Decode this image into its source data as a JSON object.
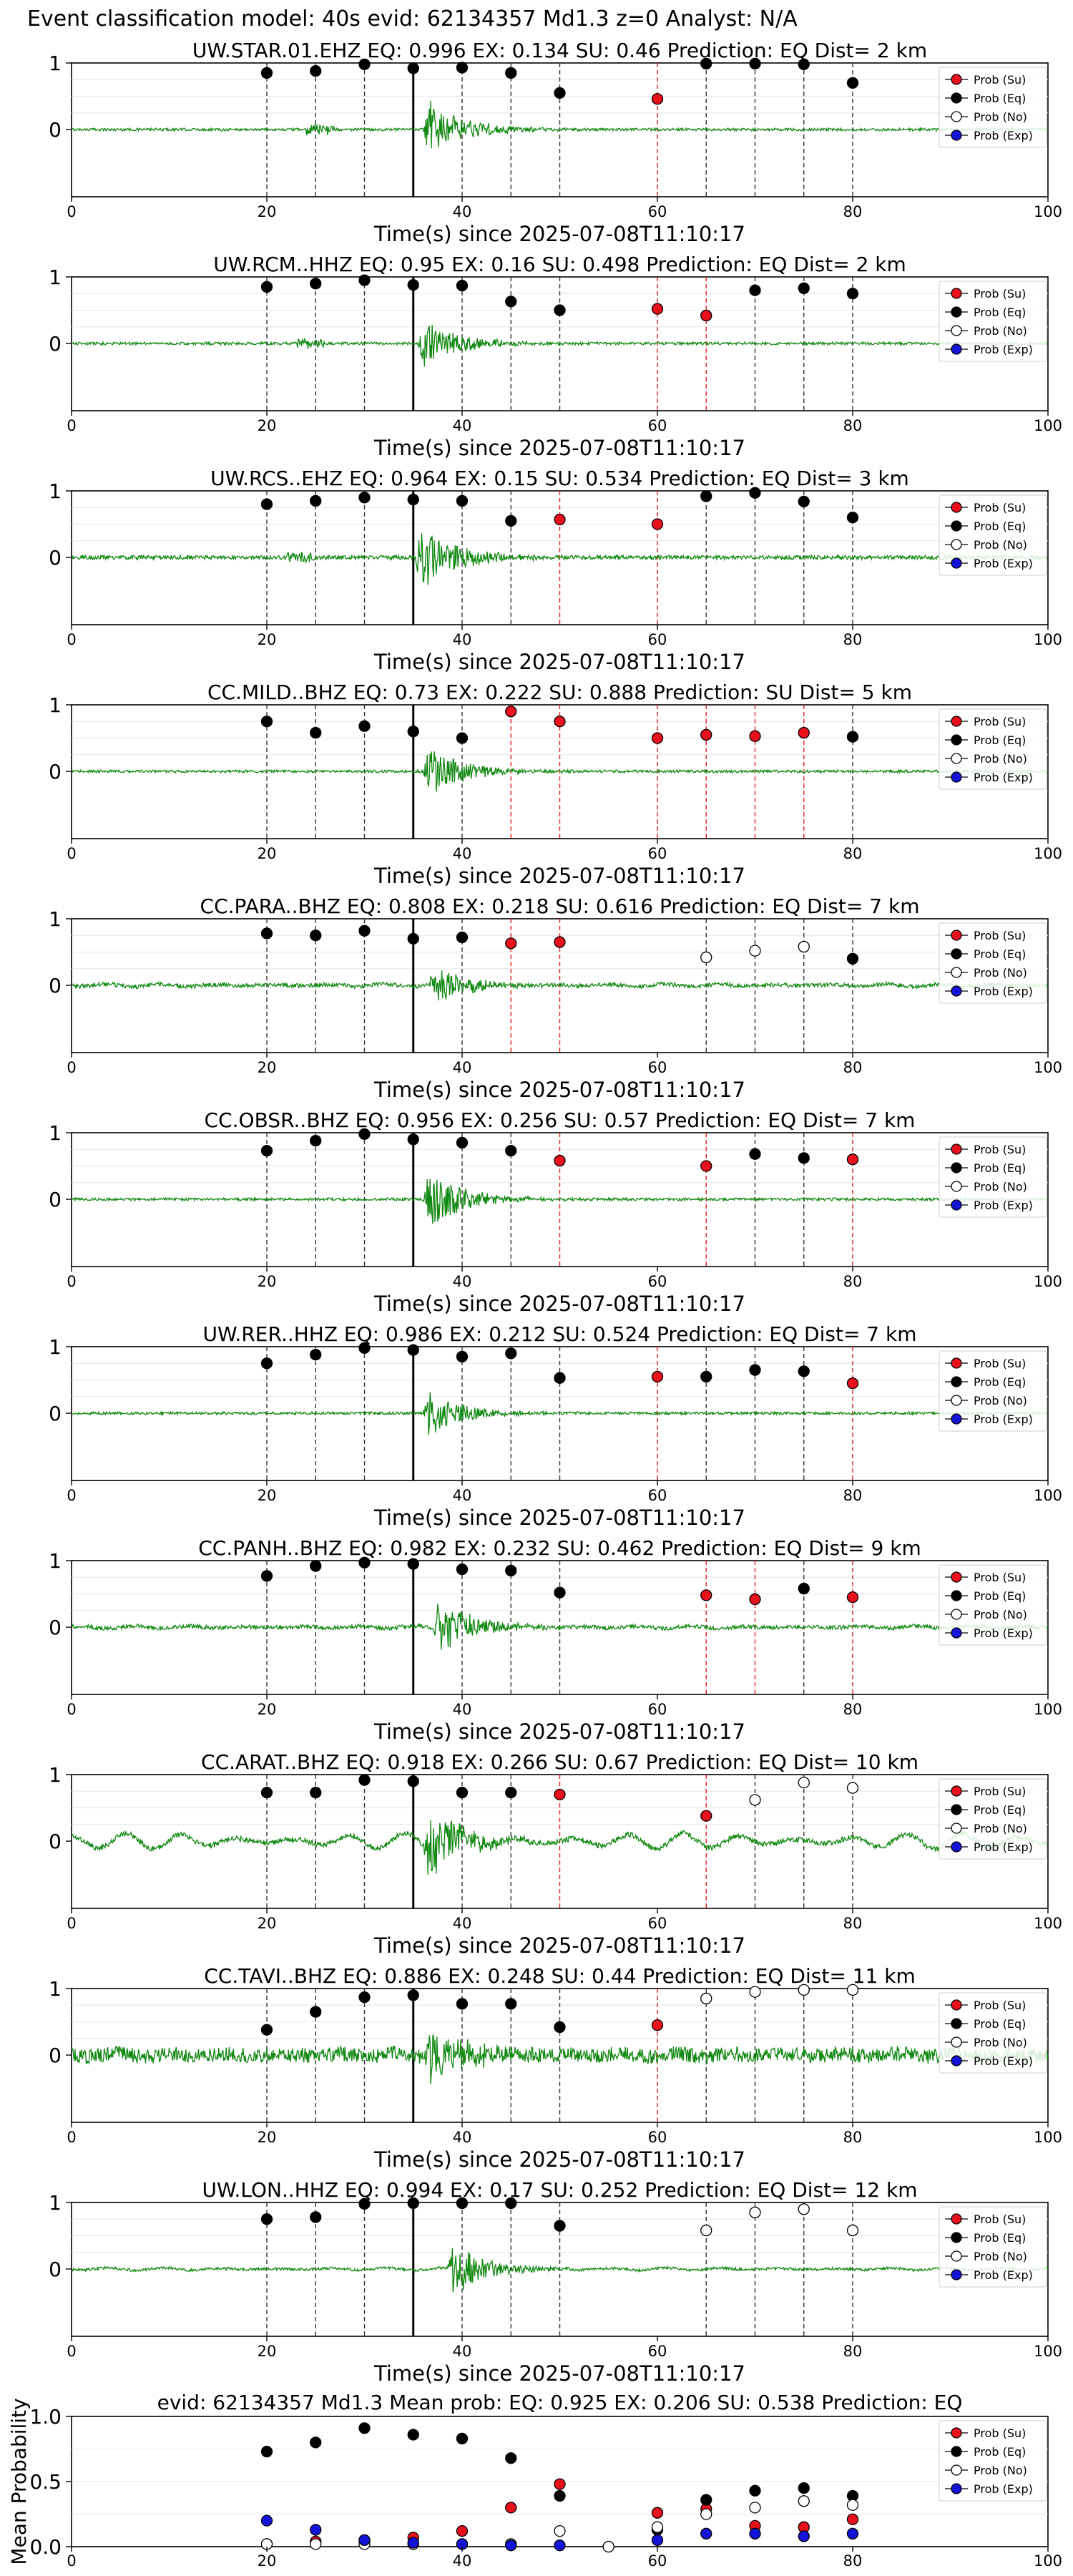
{
  "suptitle": "Event classification model: 40s evid: 62134357 Md1.3 z=0 Analyst: N/A",
  "legend_labels": [
    "Prob (Su)",
    "Prob (Eq)",
    "Prob (No)",
    "Prob (Exp)"
  ],
  "colors": {
    "su": "#e8101c",
    "eq": "#000000",
    "no": "#ffffff",
    "exp": "#1414d8",
    "trace": "#118811",
    "su_line": "#e82020",
    "eq_line": "#333333"
  },
  "chart_data": [
    {
      "type": "scatter",
      "title": "UW.STAR.01.EHZ   EQ: 0.996  EX: 0.134  SU: 0.46   Prediction: EQ    Dist= 2 km",
      "xlabel": "Time(s) since 2025-07-08T11:10:17",
      "xlim": [
        0,
        100
      ],
      "xticks": [
        "0",
        "20",
        "40",
        "60",
        "80",
        "100"
      ],
      "yticks": [
        "1",
        "0"
      ],
      "pick_time": 35,
      "trace": {
        "onset": 36,
        "amp": 0.55,
        "pre": 24,
        "noise": 0.02,
        "lf": 0
      },
      "windows": [
        {
          "t": 20,
          "p": 0.85,
          "c": "eq"
        },
        {
          "t": 25,
          "p": 0.88,
          "c": "eq"
        },
        {
          "t": 30,
          "p": 0.98,
          "c": "eq"
        },
        {
          "t": 35,
          "p": 0.92,
          "c": "eq"
        },
        {
          "t": 40,
          "p": 0.93,
          "c": "eq"
        },
        {
          "t": 45,
          "p": 0.85,
          "c": "eq"
        },
        {
          "t": 50,
          "p": 0.55,
          "c": "eq"
        },
        {
          "t": 60,
          "p": 0.46,
          "c": "su"
        },
        {
          "t": 65,
          "p": 0.99,
          "c": "eq"
        },
        {
          "t": 70,
          "p": 0.99,
          "c": "eq"
        },
        {
          "t": 75,
          "p": 0.98,
          "c": "eq"
        },
        {
          "t": 80,
          "p": 0.7,
          "c": "eq"
        }
      ]
    },
    {
      "type": "scatter",
      "title": "UW.RCM..HHZ   EQ: 0.95  EX: 0.16  SU: 0.498   Prediction: EQ    Dist= 2 km",
      "xlabel": "Time(s) since 2025-07-08T11:10:17",
      "xlim": [
        0,
        100
      ],
      "xticks": [
        "0",
        "20",
        "40",
        "60",
        "80",
        "100"
      ],
      "yticks": [
        "1",
        "0"
      ],
      "pick_time": 35,
      "trace": {
        "onset": 35.5,
        "amp": 0.45,
        "pre": 23,
        "noise": 0.02,
        "lf": 0
      },
      "windows": [
        {
          "t": 20,
          "p": 0.85,
          "c": "eq"
        },
        {
          "t": 25,
          "p": 0.9,
          "c": "eq"
        },
        {
          "t": 30,
          "p": 0.95,
          "c": "eq"
        },
        {
          "t": 35,
          "p": 0.88,
          "c": "eq"
        },
        {
          "t": 40,
          "p": 0.87,
          "c": "eq"
        },
        {
          "t": 45,
          "p": 0.63,
          "c": "eq"
        },
        {
          "t": 50,
          "p": 0.5,
          "c": "eq"
        },
        {
          "t": 60,
          "p": 0.52,
          "c": "su"
        },
        {
          "t": 65,
          "p": 0.42,
          "c": "su"
        },
        {
          "t": 70,
          "p": 0.8,
          "c": "eq"
        },
        {
          "t": 75,
          "p": 0.83,
          "c": "eq"
        },
        {
          "t": 80,
          "p": 0.75,
          "c": "eq"
        }
      ]
    },
    {
      "type": "scatter",
      "title": "UW.RCS..EHZ   EQ: 0.964  EX: 0.15  SU: 0.534   Prediction: EQ    Dist= 3 km",
      "xlabel": "Time(s) since 2025-07-08T11:10:17",
      "xlim": [
        0,
        100
      ],
      "xticks": [
        "0",
        "20",
        "40",
        "60",
        "80",
        "100"
      ],
      "yticks": [
        "1",
        "0"
      ],
      "pick_time": 35,
      "trace": {
        "onset": 35.2,
        "amp": 0.6,
        "pre": 22,
        "noise": 0.03,
        "lf": 0
      },
      "windows": [
        {
          "t": 20,
          "p": 0.8,
          "c": "eq"
        },
        {
          "t": 25,
          "p": 0.85,
          "c": "eq"
        },
        {
          "t": 30,
          "p": 0.9,
          "c": "eq"
        },
        {
          "t": 35,
          "p": 0.87,
          "c": "eq"
        },
        {
          "t": 40,
          "p": 0.85,
          "c": "eq"
        },
        {
          "t": 45,
          "p": 0.55,
          "c": "eq"
        },
        {
          "t": 50,
          "p": 0.57,
          "c": "su"
        },
        {
          "t": 60,
          "p": 0.5,
          "c": "su"
        },
        {
          "t": 65,
          "p": 0.92,
          "c": "eq"
        },
        {
          "t": 70,
          "p": 0.97,
          "c": "eq"
        },
        {
          "t": 75,
          "p": 0.84,
          "c": "eq"
        },
        {
          "t": 80,
          "p": 0.6,
          "c": "eq"
        }
      ]
    },
    {
      "type": "scatter",
      "title": "CC.MILD..BHZ   EQ: 0.73  EX: 0.222  SU: 0.888   Prediction: SU    Dist= 5 km",
      "xlabel": "Time(s) since 2025-07-08T11:10:17",
      "xlim": [
        0,
        100
      ],
      "xticks": [
        "0",
        "20",
        "40",
        "60",
        "80",
        "100"
      ],
      "yticks": [
        "1",
        "0"
      ],
      "pick_time": 35,
      "trace": {
        "onset": 36,
        "amp": 0.45,
        "pre": 0,
        "noise": 0.02,
        "lf": 0
      },
      "windows": [
        {
          "t": 20,
          "p": 0.75,
          "c": "eq"
        },
        {
          "t": 25,
          "p": 0.58,
          "c": "eq"
        },
        {
          "t": 30,
          "p": 0.68,
          "c": "eq"
        },
        {
          "t": 35,
          "p": 0.6,
          "c": "eq"
        },
        {
          "t": 40,
          "p": 0.5,
          "c": "eq"
        },
        {
          "t": 45,
          "p": 0.9,
          "c": "su"
        },
        {
          "t": 50,
          "p": 0.75,
          "c": "su"
        },
        {
          "t": 60,
          "p": 0.5,
          "c": "su"
        },
        {
          "t": 65,
          "p": 0.55,
          "c": "su"
        },
        {
          "t": 70,
          "p": 0.53,
          "c": "su"
        },
        {
          "t": 75,
          "p": 0.58,
          "c": "su"
        },
        {
          "t": 80,
          "p": 0.52,
          "c": "eq"
        }
      ]
    },
    {
      "type": "scatter",
      "title": "CC.PARA..BHZ   EQ: 0.808  EX: 0.218  SU: 0.616   Prediction: EQ    Dist= 7 km",
      "xlabel": "Time(s) since 2025-07-08T11:10:17",
      "xlim": [
        0,
        100
      ],
      "xticks": [
        "0",
        "20",
        "40",
        "60",
        "80",
        "100"
      ],
      "yticks": [
        "1",
        "0"
      ],
      "pick_time": 35,
      "trace": {
        "onset": 36.5,
        "amp": 0.35,
        "pre": 0,
        "noise": 0.03,
        "lf": 0.02
      },
      "windows": [
        {
          "t": 20,
          "p": 0.78,
          "c": "eq"
        },
        {
          "t": 25,
          "p": 0.75,
          "c": "eq"
        },
        {
          "t": 30,
          "p": 0.82,
          "c": "eq"
        },
        {
          "t": 35,
          "p": 0.7,
          "c": "eq"
        },
        {
          "t": 40,
          "p": 0.72,
          "c": "eq"
        },
        {
          "t": 45,
          "p": 0.63,
          "c": "su"
        },
        {
          "t": 50,
          "p": 0.65,
          "c": "su"
        },
        {
          "t": 65,
          "p": 0.42,
          "c": "no"
        },
        {
          "t": 70,
          "p": 0.52,
          "c": "no"
        },
        {
          "t": 75,
          "p": 0.58,
          "c": "no"
        },
        {
          "t": 80,
          "p": 0.4,
          "c": "eq"
        }
      ]
    },
    {
      "type": "scatter",
      "title": "CC.OBSR..BHZ   EQ: 0.956  EX: 0.256  SU: 0.57   Prediction: EQ    Dist= 7 km",
      "xlabel": "Time(s) since 2025-07-08T11:10:17",
      "xlim": [
        0,
        100
      ],
      "xticks": [
        "0",
        "20",
        "40",
        "60",
        "80",
        "100"
      ],
      "yticks": [
        "1",
        "0"
      ],
      "pick_time": 35,
      "trace": {
        "onset": 36,
        "amp": 0.55,
        "pre": 0,
        "noise": 0.02,
        "lf": 0
      },
      "windows": [
        {
          "t": 20,
          "p": 0.73,
          "c": "eq"
        },
        {
          "t": 25,
          "p": 0.88,
          "c": "eq"
        },
        {
          "t": 30,
          "p": 0.98,
          "c": "eq"
        },
        {
          "t": 35,
          "p": 0.9,
          "c": "eq"
        },
        {
          "t": 40,
          "p": 0.85,
          "c": "eq"
        },
        {
          "t": 45,
          "p": 0.73,
          "c": "eq"
        },
        {
          "t": 50,
          "p": 0.58,
          "c": "su"
        },
        {
          "t": 65,
          "p": 0.5,
          "c": "su"
        },
        {
          "t": 70,
          "p": 0.68,
          "c": "eq"
        },
        {
          "t": 75,
          "p": 0.62,
          "c": "eq"
        },
        {
          "t": 80,
          "p": 0.6,
          "c": "su"
        }
      ]
    },
    {
      "type": "scatter",
      "title": "UW.RER..HHZ   EQ: 0.986  EX: 0.212  SU: 0.524   Prediction: EQ    Dist= 7 km",
      "xlabel": "Time(s) since 2025-07-08T11:10:17",
      "xlim": [
        0,
        100
      ],
      "xticks": [
        "0",
        "20",
        "40",
        "60",
        "80",
        "100"
      ],
      "yticks": [
        "1",
        "0"
      ],
      "pick_time": 35,
      "trace": {
        "onset": 36,
        "amp": 0.4,
        "pre": 0,
        "noise": 0.02,
        "lf": 0
      },
      "windows": [
        {
          "t": 20,
          "p": 0.75,
          "c": "eq"
        },
        {
          "t": 25,
          "p": 0.88,
          "c": "eq"
        },
        {
          "t": 30,
          "p": 0.98,
          "c": "eq"
        },
        {
          "t": 35,
          "p": 0.95,
          "c": "eq"
        },
        {
          "t": 40,
          "p": 0.85,
          "c": "eq"
        },
        {
          "t": 45,
          "p": 0.9,
          "c": "eq"
        },
        {
          "t": 50,
          "p": 0.53,
          "c": "eq"
        },
        {
          "t": 60,
          "p": 0.55,
          "c": "su"
        },
        {
          "t": 65,
          "p": 0.55,
          "c": "eq"
        },
        {
          "t": 70,
          "p": 0.65,
          "c": "eq"
        },
        {
          "t": 75,
          "p": 0.63,
          "c": "eq"
        },
        {
          "t": 80,
          "p": 0.45,
          "c": "su"
        }
      ]
    },
    {
      "type": "scatter",
      "title": "CC.PANH..BHZ   EQ: 0.982  EX: 0.232  SU: 0.462   Prediction: EQ    Dist= 9 km",
      "xlabel": "Time(s) since 2025-07-08T11:10:17",
      "xlim": [
        0,
        100
      ],
      "xticks": [
        "0",
        "20",
        "40",
        "60",
        "80",
        "100"
      ],
      "yticks": [
        "1",
        "0"
      ],
      "pick_time": 35,
      "trace": {
        "onset": 37,
        "amp": 0.5,
        "pre": 0,
        "noise": 0.03,
        "lf": 0.02
      },
      "windows": [
        {
          "t": 20,
          "p": 0.77,
          "c": "eq"
        },
        {
          "t": 25,
          "p": 0.92,
          "c": "eq"
        },
        {
          "t": 30,
          "p": 0.97,
          "c": "eq"
        },
        {
          "t": 35,
          "p": 0.95,
          "c": "eq"
        },
        {
          "t": 40,
          "p": 0.87,
          "c": "eq"
        },
        {
          "t": 45,
          "p": 0.85,
          "c": "eq"
        },
        {
          "t": 50,
          "p": 0.52,
          "c": "eq"
        },
        {
          "t": 65,
          "p": 0.48,
          "c": "su"
        },
        {
          "t": 70,
          "p": 0.42,
          "c": "su"
        },
        {
          "t": 75,
          "p": 0.58,
          "c": "eq"
        },
        {
          "t": 80,
          "p": 0.45,
          "c": "su"
        }
      ]
    },
    {
      "type": "scatter",
      "title": "CC.ARAT..BHZ   EQ: 0.918  EX: 0.266  SU: 0.67   Prediction: EQ    Dist= 10 km",
      "xlabel": "Time(s) since 2025-07-08T11:10:17",
      "xlim": [
        0,
        100
      ],
      "xticks": [
        "0",
        "20",
        "40",
        "60",
        "80",
        "100"
      ],
      "yticks": [
        "1",
        "0"
      ],
      "pick_time": 35,
      "trace": {
        "onset": 36,
        "amp": 0.6,
        "pre": 0,
        "noise": 0.04,
        "lf": 0.12
      },
      "windows": [
        {
          "t": 20,
          "p": 0.73,
          "c": "eq"
        },
        {
          "t": 25,
          "p": 0.73,
          "c": "eq"
        },
        {
          "t": 30,
          "p": 0.92,
          "c": "eq"
        },
        {
          "t": 35,
          "p": 0.9,
          "c": "eq"
        },
        {
          "t": 40,
          "p": 0.73,
          "c": "eq"
        },
        {
          "t": 45,
          "p": 0.73,
          "c": "eq"
        },
        {
          "t": 50,
          "p": 0.7,
          "c": "su"
        },
        {
          "t": 65,
          "p": 0.38,
          "c": "su"
        },
        {
          "t": 70,
          "p": 0.62,
          "c": "no"
        },
        {
          "t": 75,
          "p": 0.88,
          "c": "no"
        },
        {
          "t": 80,
          "p": 0.8,
          "c": "no"
        }
      ]
    },
    {
      "type": "scatter",
      "title": "CC.TAVI..BHZ   EQ: 0.886  EX: 0.248  SU: 0.44   Prediction: EQ    Dist= 11 km",
      "xlabel": "Time(s) since 2025-07-08T11:10:17",
      "xlim": [
        0,
        100
      ],
      "xticks": [
        "0",
        "20",
        "40",
        "60",
        "80",
        "100"
      ],
      "yticks": [
        "1",
        "0"
      ],
      "pick_time": 35,
      "trace": {
        "onset": 36,
        "amp": 0.6,
        "pre": 0,
        "noise": 0.11,
        "lf": 0.03
      },
      "windows": [
        {
          "t": 20,
          "p": 0.38,
          "c": "eq"
        },
        {
          "t": 25,
          "p": 0.65,
          "c": "eq"
        },
        {
          "t": 30,
          "p": 0.87,
          "c": "eq"
        },
        {
          "t": 35,
          "p": 0.9,
          "c": "eq"
        },
        {
          "t": 40,
          "p": 0.77,
          "c": "eq"
        },
        {
          "t": 45,
          "p": 0.77,
          "c": "eq"
        },
        {
          "t": 50,
          "p": 0.42,
          "c": "eq"
        },
        {
          "t": 60,
          "p": 0.45,
          "c": "su"
        },
        {
          "t": 65,
          "p": 0.85,
          "c": "no"
        },
        {
          "t": 70,
          "p": 0.95,
          "c": "no"
        },
        {
          "t": 75,
          "p": 0.98,
          "c": "no"
        },
        {
          "t": 80,
          "p": 0.98,
          "c": "no"
        }
      ]
    },
    {
      "type": "scatter",
      "title": "UW.LON..HHZ   EQ: 0.994  EX: 0.17  SU: 0.252   Prediction: EQ    Dist= 12 km",
      "xlabel": "Time(s) since 2025-07-08T11:10:17",
      "xlim": [
        0,
        100
      ],
      "xticks": [
        "0",
        "20",
        "40",
        "60",
        "80",
        "100"
      ],
      "yticks": [
        "1",
        "0"
      ],
      "pick_time": 35,
      "trace": {
        "onset": 38.5,
        "amp": 0.5,
        "pre": 0,
        "noise": 0.02,
        "lf": 0.02
      },
      "windows": [
        {
          "t": 20,
          "p": 0.75,
          "c": "eq"
        },
        {
          "t": 25,
          "p": 0.78,
          "c": "eq"
        },
        {
          "t": 30,
          "p": 0.98,
          "c": "eq"
        },
        {
          "t": 35,
          "p": 0.99,
          "c": "eq"
        },
        {
          "t": 40,
          "p": 0.99,
          "c": "eq"
        },
        {
          "t": 45,
          "p": 0.99,
          "c": "eq"
        },
        {
          "t": 50,
          "p": 0.65,
          "c": "eq"
        },
        {
          "t": 65,
          "p": 0.58,
          "c": "no"
        },
        {
          "t": 70,
          "p": 0.85,
          "c": "no"
        },
        {
          "t": 75,
          "p": 0.9,
          "c": "no"
        },
        {
          "t": 80,
          "p": 0.58,
          "c": "no"
        }
      ]
    },
    {
      "type": "scatter",
      "title": "evid: 62134357  Md1.3   Mean prob:   EQ: 0.925  EX: 0.206  SU: 0.538   Prediction: EQ",
      "xlabel": "",
      "ylabel": "Mean Probability",
      "xlim": [
        0,
        100
      ],
      "ylim": [
        0,
        1
      ],
      "xticks": [
        "0",
        "20",
        "40",
        "60",
        "80",
        "100"
      ],
      "yticks": [
        "0.0",
        "0.5",
        "1.0"
      ],
      "series": [
        {
          "name": "Prob (Su)",
          "c": "su",
          "x": [
            20,
            25,
            30,
            35,
            40,
            45,
            50,
            55,
            60,
            65,
            70,
            75,
            80
          ],
          "y": [
            0.02,
            0.04,
            0.05,
            0.07,
            0.12,
            0.3,
            0.48,
            0.0,
            0.26,
            0.29,
            0.16,
            0.15,
            0.21
          ]
        },
        {
          "name": "Prob (Eq)",
          "c": "eq",
          "x": [
            20,
            25,
            30,
            35,
            40,
            45,
            50,
            60,
            65,
            70,
            75,
            80
          ],
          "y": [
            0.73,
            0.8,
            0.91,
            0.86,
            0.83,
            0.68,
            0.39,
            0.13,
            0.36,
            0.43,
            0.45,
            0.39
          ]
        },
        {
          "name": "Prob (No)",
          "c": "no",
          "x": [
            20,
            25,
            30,
            35,
            40,
            45,
            50,
            55,
            60,
            65,
            70,
            75,
            80
          ],
          "y": [
            0.02,
            0.02,
            0.02,
            0.02,
            0.02,
            0.02,
            0.12,
            0.0,
            0.15,
            0.25,
            0.3,
            0.35,
            0.32
          ]
        },
        {
          "name": "Prob (Exp)",
          "c": "exp",
          "x": [
            20,
            25,
            30,
            35,
            40,
            45,
            50,
            60,
            65,
            70,
            75,
            80
          ],
          "y": [
            0.2,
            0.13,
            0.05,
            0.03,
            0.02,
            0.01,
            0.01,
            0.05,
            0.1,
            0.1,
            0.08,
            0.1
          ]
        }
      ]
    }
  ]
}
